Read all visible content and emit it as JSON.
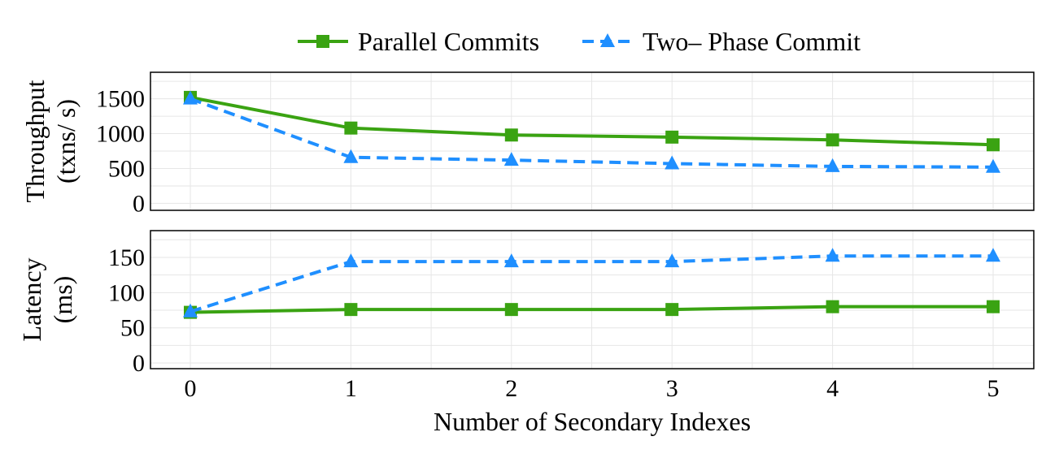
{
  "chart_data": {
    "type": "line",
    "x": [
      0,
      1,
      2,
      3,
      4,
      5
    ],
    "xlabel": "Number of Secondary Indexes",
    "legend": {
      "placement": "top-center",
      "entries": [
        "Parallel Commits",
        "Two– Phase Commit"
      ]
    },
    "styles": [
      {
        "name": "Parallel Commits",
        "color": "#3aa312",
        "dash": "solid",
        "marker": "square"
      },
      {
        "name": "Two– Phase Commit",
        "color": "#1f8fff",
        "dash": "dashed",
        "marker": "triangle"
      }
    ],
    "panels": [
      {
        "ylabel_line1": "Throughput",
        "ylabel_line2": "(txns/ s)",
        "ylim": [
          -100,
          1880
        ],
        "yticks": [
          0,
          500,
          1000,
          1500
        ],
        "grid": true,
        "series": [
          {
            "name": "Parallel Commits",
            "values": [
              1520,
              1080,
              980,
              950,
              910,
              840
            ]
          },
          {
            "name": "Two– Phase Commit",
            "values": [
              1500,
              660,
              620,
              570,
              530,
              520
            ]
          }
        ]
      },
      {
        "ylabel_line1": "Latency",
        "ylabel_line2": "(ms)",
        "ylim": [
          -8,
          188
        ],
        "yticks": [
          0,
          50,
          100,
          150
        ],
        "grid": true,
        "series": [
          {
            "name": "Parallel Commits",
            "values": [
              72,
              76,
              76,
              76,
              80,
              80
            ]
          },
          {
            "name": "Two– Phase Commit",
            "values": [
              73,
              144,
              144,
              144,
              152,
              152
            ]
          }
        ]
      }
    ]
  }
}
